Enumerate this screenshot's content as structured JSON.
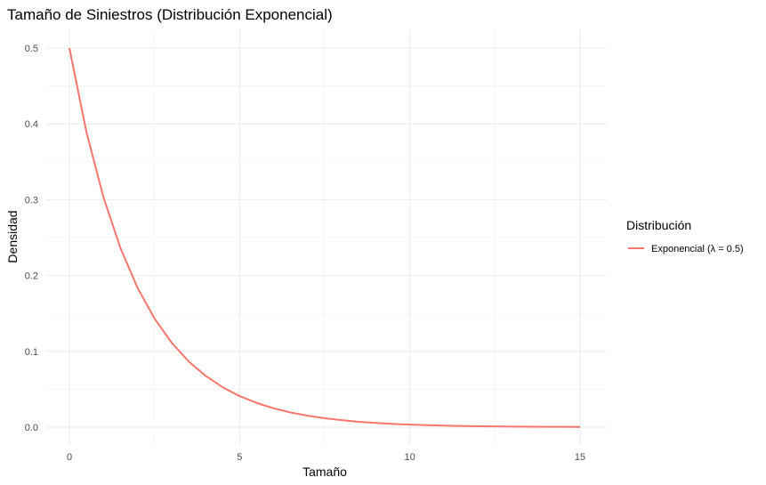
{
  "chart_data": {
    "type": "line",
    "title": "Tamaño de Siniestros (Distribución Exponencial)",
    "xlabel": "Tamaño",
    "ylabel": "Densidad",
    "xlim": [
      0,
      15
    ],
    "ylim": [
      0,
      0.5
    ],
    "x_ticks": [
      0,
      5,
      10,
      15
    ],
    "x_tick_labels": [
      "0",
      "5",
      "10",
      "15"
    ],
    "y_ticks": [
      0,
      0.1,
      0.2,
      0.3,
      0.4,
      0.5
    ],
    "y_tick_labels": [
      "0.0",
      "0.1",
      "0.2",
      "0.3",
      "0.4",
      "0.5"
    ],
    "grid": true,
    "legend": {
      "title": "Distribución",
      "position": "right",
      "entries": [
        {
          "label": "Exponencial (λ = 0.5)",
          "color": "#F8766D"
        }
      ]
    },
    "series": [
      {
        "name": "Exponencial (λ = 0.5)",
        "color": "#F8766D",
        "x": [
          0,
          0.5,
          1,
          1.5,
          2,
          2.5,
          3,
          3.5,
          4,
          4.5,
          5,
          5.5,
          6,
          6.5,
          7,
          7.5,
          8,
          8.5,
          9,
          9.5,
          10,
          10.5,
          11,
          11.5,
          12,
          12.5,
          13,
          13.5,
          14,
          14.5,
          15
        ],
        "y": [
          0.5,
          0.3894,
          0.3033,
          0.2362,
          0.1839,
          0.1433,
          0.1116,
          0.0869,
          0.0677,
          0.0527,
          0.041,
          0.032,
          0.0249,
          0.0194,
          0.0151,
          0.0118,
          0.0092,
          0.0071,
          0.0056,
          0.0043,
          0.0034,
          0.0026,
          0.002,
          0.0016,
          0.0012,
          0.001,
          0.0008,
          0.0006,
          0.0005,
          0.0004,
          0.0003
        ]
      }
    ]
  }
}
